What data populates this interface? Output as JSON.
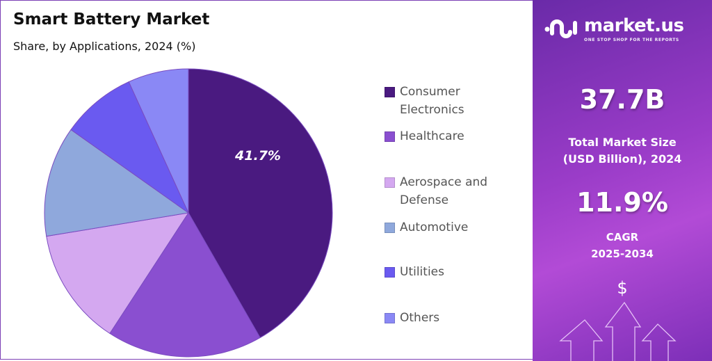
{
  "chart_data": {
    "type": "pie",
    "title": "Smart Battery Market",
    "subtitle": "Share, by Applications, 2024 (%)",
    "slices": [
      {
        "name": "Consumer Electronics",
        "value": 41.7,
        "color": "#4a1a80",
        "label": "41.7%"
      },
      {
        "name": "Healthcare",
        "value": 17.5,
        "color": "#8a4fd0"
      },
      {
        "name": "Aerospace and Defense",
        "value": 13.2,
        "color": "#d4a8f0"
      },
      {
        "name": "Automotive",
        "value": 12.4,
        "color": "#8fa8dc"
      },
      {
        "name": "Utilities",
        "value": 8.4,
        "color": "#6a5af0"
      },
      {
        "name": "Others",
        "value": 6.8,
        "color": "#8a88f5"
      }
    ],
    "legend_position": "right",
    "legend": [
      "Consumer Electronics",
      "Healthcare",
      "Aerospace and Defense",
      "Automotive",
      "Utilities",
      "Others"
    ]
  },
  "panel": {
    "brand": "market.us",
    "tagline": "ONE STOP SHOP FOR THE REPORTS",
    "market_size": "37.7B",
    "market_size_label_1": "Total Market Size",
    "market_size_label_2": "(USD Billion), 2024",
    "cagr": "11.9%",
    "cagr_label_1": "CAGR",
    "cagr_label_2": "2025-2034",
    "dollar": "$"
  }
}
